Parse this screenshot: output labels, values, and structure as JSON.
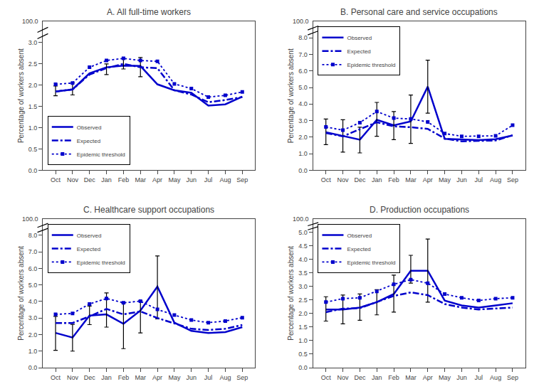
{
  "chart_data": [
    {
      "type": "line",
      "title": "A. All full-time workers",
      "y_label": "Percentage of workers absent",
      "categories": [
        "Oct",
        "Nov",
        "Dec",
        "Jan",
        "Feb",
        "Mar",
        "Apr",
        "May",
        "Jun",
        "Jul",
        "Aug",
        "Sep"
      ],
      "series": [
        {
          "name": "Observed",
          "color": "#0000cc",
          "line_style": "solid",
          "values": [
            1.85,
            1.9,
            2.28,
            2.42,
            2.46,
            2.45,
            2.02,
            1.88,
            1.82,
            1.52,
            1.55,
            1.73
          ],
          "errors": {
            "low": [
              1.75,
              1.77,
              null,
              2.25,
              2.38,
              2.2,
              null,
              null,
              null,
              null,
              null,
              null
            ],
            "high": [
              1.98,
              2.05,
              null,
              2.5,
              2.62,
              2.65,
              null,
              null,
              null,
              null,
              null,
              null
            ],
            "color": "#000000"
          }
        },
        {
          "name": "Expected",
          "color": "#0000cc",
          "line_style": "dashdot",
          "values": [
            1.85,
            1.9,
            2.25,
            2.4,
            2.5,
            2.42,
            2.4,
            1.88,
            1.78,
            1.6,
            1.65,
            1.72
          ]
        },
        {
          "name": "Epidemic threshold",
          "color": "#0000cc",
          "line_style": "dotted",
          "marker": "square",
          "values": [
            2.02,
            2.05,
            2.42,
            2.58,
            2.63,
            2.58,
            2.56,
            2.03,
            1.92,
            1.72,
            1.76,
            1.84
          ]
        }
      ],
      "ylim": [
        0.0,
        3.5
      ],
      "yticks": [
        {
          "value": 0.0,
          "label": "0.0"
        },
        {
          "value": 0.5,
          "label": "0.5"
        },
        {
          "value": 1.0,
          "label": "1.0"
        },
        {
          "value": 1.5,
          "label": "1.5"
        },
        {
          "value": 2.0,
          "label": "2.0"
        },
        {
          "value": 2.5,
          "label": "2.5"
        },
        {
          "value": 3.0,
          "label": "3.0"
        }
      ],
      "annotations": [
        {
          "text": "100.0"
        }
      ],
      "legend": "lower left",
      "grid": false
    },
    {
      "type": "line",
      "title": "B. Personal care and service occupations",
      "y_label": "Percentage of workers absent",
      "categories": [
        "Oct",
        "Nov",
        "Dec",
        "Jan",
        "Feb",
        "Mar",
        "Apr",
        "May",
        "Jun",
        "Jul",
        "Aug",
        "Sep"
      ],
      "series": [
        {
          "name": "Observed",
          "color": "#0000cc",
          "line_style": "solid",
          "values": [
            2.3,
            2.08,
            1.85,
            3.05,
            2.72,
            2.95,
            5.05,
            1.9,
            1.85,
            1.82,
            1.88,
            2.1
          ],
          "errors": {
            "low": [
              1.55,
              1.1,
              1.05,
              2.05,
              1.85,
              1.62,
              3.45,
              null,
              null,
              null,
              null,
              null
            ],
            "high": [
              3.1,
              3.05,
              2.6,
              4.1,
              3.55,
              4.55,
              6.65,
              null,
              null,
              null,
              null,
              null
            ],
            "color": "#000000"
          }
        },
        {
          "name": "Expected",
          "color": "#0000cc",
          "line_style": "dashdot",
          "values": [
            2.25,
            2.05,
            2.48,
            2.9,
            2.65,
            2.6,
            2.5,
            1.92,
            1.75,
            1.78,
            1.8,
            2.12
          ]
        },
        {
          "name": "Epidemic threshold",
          "color": "#0000cc",
          "line_style": "dotted",
          "marker": "square",
          "values": [
            2.62,
            2.42,
            2.88,
            3.55,
            3.15,
            3.1,
            2.92,
            2.22,
            2.05,
            2.05,
            2.08,
            2.72
          ]
        }
      ],
      "ylim": [
        0.0,
        9.0
      ],
      "yticks": [
        {
          "value": 0.0,
          "label": "0.0"
        },
        {
          "value": 1.0,
          "label": "1.0"
        },
        {
          "value": 2.0,
          "label": "2.0"
        },
        {
          "value": 3.0,
          "label": "3.0"
        },
        {
          "value": 4.0,
          "label": "4.0"
        },
        {
          "value": 5.0,
          "label": "5.0"
        },
        {
          "value": 6.0,
          "label": "6.0"
        },
        {
          "value": 7.0,
          "label": "7.0"
        },
        {
          "value": 8.0,
          "label": "8.0"
        }
      ],
      "annotations": [
        {
          "text": "100.0"
        }
      ],
      "legend": "upper left",
      "grid": false
    },
    {
      "type": "line",
      "title": "C. Healthcare support occupations",
      "y_label": "Percentage of workers absent",
      "categories": [
        "Oct",
        "Nov",
        "Dec",
        "Jan",
        "Feb",
        "Mar",
        "Apr",
        "May",
        "Jun",
        "Jul",
        "Aug",
        "Sep"
      ],
      "series": [
        {
          "name": "Observed",
          "color": "#0000cc",
          "line_style": "solid",
          "values": [
            2.1,
            1.82,
            3.15,
            3.22,
            2.65,
            3.45,
            4.9,
            2.72,
            2.22,
            2.1,
            2.15,
            2.45
          ],
          "errors": {
            "low": [
              1.05,
              1.0,
              2.6,
              2.45,
              1.15,
              2.1,
              2.95,
              null,
              null,
              null,
              null,
              null
            ],
            "high": [
              3.1,
              2.62,
              3.72,
              4.52,
              3.9,
              4.05,
              6.75,
              null,
              null,
              null,
              null,
              null
            ],
            "color": "#000000"
          }
        },
        {
          "name": "Expected",
          "color": "#0000cc",
          "line_style": "dashdot",
          "values": [
            2.7,
            2.7,
            3.1,
            3.55,
            3.22,
            3.4,
            3.0,
            2.68,
            2.35,
            2.28,
            2.35,
            2.58
          ]
        },
        {
          "name": "Epidemic threshold",
          "color": "#0000cc",
          "line_style": "dotted",
          "marker": "square",
          "values": [
            3.22,
            3.28,
            3.85,
            4.18,
            3.92,
            4.02,
            3.52,
            3.18,
            2.88,
            2.72,
            2.82,
            3.02
          ]
        }
      ],
      "ylim": [
        0.0,
        9.0
      ],
      "yticks": [
        {
          "value": 0.0,
          "label": "0.0"
        },
        {
          "value": 1.0,
          "label": "1.0"
        },
        {
          "value": 2.0,
          "label": "2.0"
        },
        {
          "value": 3.0,
          "label": "3.0"
        },
        {
          "value": 4.0,
          "label": "4.0"
        },
        {
          "value": 5.0,
          "label": "5.0"
        },
        {
          "value": 6.0,
          "label": "6.0"
        },
        {
          "value": 7.0,
          "label": "7.0"
        },
        {
          "value": 8.0,
          "label": "8.0"
        }
      ],
      "annotations": [
        {
          "text": "100.0"
        }
      ],
      "legend": "upper left",
      "grid": false
    },
    {
      "type": "line",
      "title": "D. Production occupations",
      "y_label": "Percentage of workers absent",
      "categories": [
        "Oct",
        "Nov",
        "Dec",
        "Jan",
        "Feb",
        "Mar",
        "Apr",
        "May",
        "Jun",
        "Jul",
        "Aug",
        "Sep"
      ],
      "series": [
        {
          "name": "Observed",
          "color": "#0000cc",
          "line_style": "solid",
          "values": [
            2.15,
            2.15,
            2.22,
            2.42,
            2.72,
            3.58,
            3.58,
            2.48,
            2.3,
            2.22,
            2.3,
            2.38
          ],
          "errors": {
            "low": [
              1.72,
              1.62,
              1.75,
              1.95,
              2.05,
              3.12,
              2.42,
              null,
              null,
              null,
              null,
              null
            ],
            "high": [
              2.62,
              2.68,
              2.72,
              2.88,
              3.42,
              4.15,
              4.75,
              null,
              null,
              null,
              null,
              null
            ],
            "color": "#000000"
          }
        },
        {
          "name": "Expected",
          "color": "#0000cc",
          "line_style": "dashdot",
          "values": [
            2.05,
            2.18,
            2.2,
            2.42,
            2.65,
            2.78,
            2.68,
            2.35,
            2.22,
            2.15,
            2.18,
            2.22
          ]
        },
        {
          "name": "Epidemic threshold",
          "color": "#0000cc",
          "line_style": "dotted",
          "marker": "square",
          "values": [
            2.42,
            2.55,
            2.58,
            2.82,
            3.08,
            3.25,
            3.12,
            2.72,
            2.58,
            2.48,
            2.55,
            2.58
          ]
        }
      ],
      "ylim": [
        0.0,
        5.5
      ],
      "yticks": [
        {
          "value": 0.0,
          "label": "0.0"
        },
        {
          "value": 0.5,
          "label": "0.5"
        },
        {
          "value": 1.0,
          "label": "1.0"
        },
        {
          "value": 1.5,
          "label": "1.5"
        },
        {
          "value": 2.0,
          "label": "2.0"
        },
        {
          "value": 2.5,
          "label": "2.5"
        },
        {
          "value": 3.0,
          "label": "3.0"
        },
        {
          "value": 3.5,
          "label": "3.5"
        },
        {
          "value": 4.0,
          "label": "4.0"
        },
        {
          "value": 4.5,
          "label": "4.5"
        },
        {
          "value": 5.0,
          "label": "5.0"
        }
      ],
      "annotations": [
        {
          "text": "100.0"
        }
      ],
      "legend": "upper left",
      "grid": false
    }
  ]
}
